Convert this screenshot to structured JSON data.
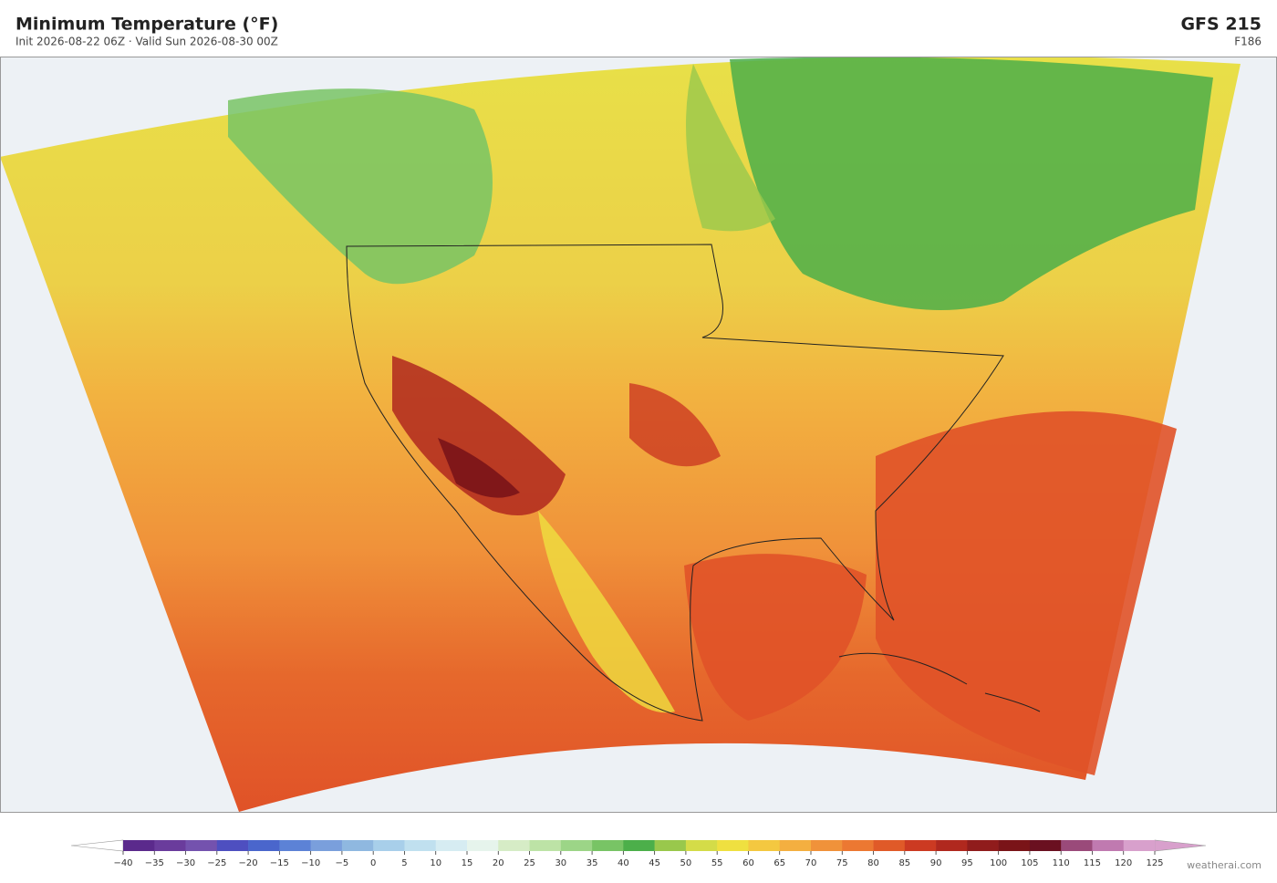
{
  "header": {
    "title": "Minimum Temperature  (°F)",
    "subtitle": "Init 2026-08-22 06Z  ·  Valid Sun 2026-08-30 00Z",
    "model": "GFS  215",
    "forecast_hour": "F186"
  },
  "colorbar": {
    "ticks": [
      {
        "value": -40,
        "label": "−40"
      },
      {
        "value": -35,
        "label": "−35"
      },
      {
        "value": -30,
        "label": "−30"
      },
      {
        "value": -25,
        "label": "−25"
      },
      {
        "value": -20,
        "label": "−20"
      },
      {
        "value": -15,
        "label": "−15"
      },
      {
        "value": -10,
        "label": "−10"
      },
      {
        "value": -5,
        "label": "−5"
      },
      0,
      5,
      10,
      15,
      20,
      25,
      30,
      35,
      40,
      45,
      50,
      55,
      60,
      65,
      70,
      75,
      80,
      85,
      90,
      95,
      100,
      105,
      110,
      115,
      120,
      125
    ],
    "colors": [
      "#5b2a8c",
      "#6a3c9c",
      "#7452ae",
      "#4e4fc0",
      "#4a66cc",
      "#5c82d6",
      "#7a9fdc",
      "#8fb8e0",
      "#a8cfea",
      "#c0e0ef",
      "#d6ecf2",
      "#e6f4ec",
      "#d6ecc6",
      "#bde3a6",
      "#9cd587",
      "#78c465",
      "#4caf4a",
      "#99c84c",
      "#d4dc48",
      "#efe040",
      "#f4c840",
      "#f4af40",
      "#f0923a",
      "#ec7832",
      "#e05a28",
      "#cc3a22",
      "#b0281e",
      "#901c1c",
      "#7a1418",
      "#6a1020",
      "#9a4a7a",
      "#c07ab0",
      "#d8a0cc"
    ],
    "extend_colors": [
      "#ffffff",
      "#d8a0cc"
    ]
  },
  "footer": {
    "credit": "weatherai.com"
  }
}
